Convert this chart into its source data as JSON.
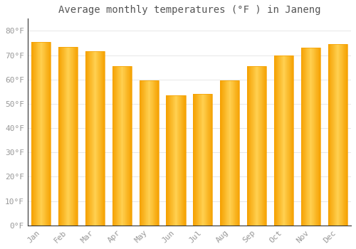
{
  "title": "Average monthly temperatures (°F ) in Janeng",
  "months": [
    "Jan",
    "Feb",
    "Mar",
    "Apr",
    "May",
    "Jun",
    "Jul",
    "Aug",
    "Sep",
    "Oct",
    "Nov",
    "Dec"
  ],
  "values": [
    75.5,
    73.5,
    71.5,
    65.5,
    59.5,
    53.5,
    54.0,
    59.5,
    65.5,
    70.0,
    73.0,
    74.5
  ],
  "bar_color_center": "#FFD050",
  "bar_color_edge": "#F5A000",
  "background_color": "#FFFFFF",
  "grid_color": "#DDDDDD",
  "text_color": "#999999",
  "title_color": "#555555",
  "ylim": [
    0,
    85
  ],
  "yticks": [
    0,
    10,
    20,
    30,
    40,
    50,
    60,
    70,
    80
  ],
  "ylabel_suffix": "°F",
  "title_fontsize": 10,
  "tick_fontsize": 8,
  "bar_width": 0.72
}
